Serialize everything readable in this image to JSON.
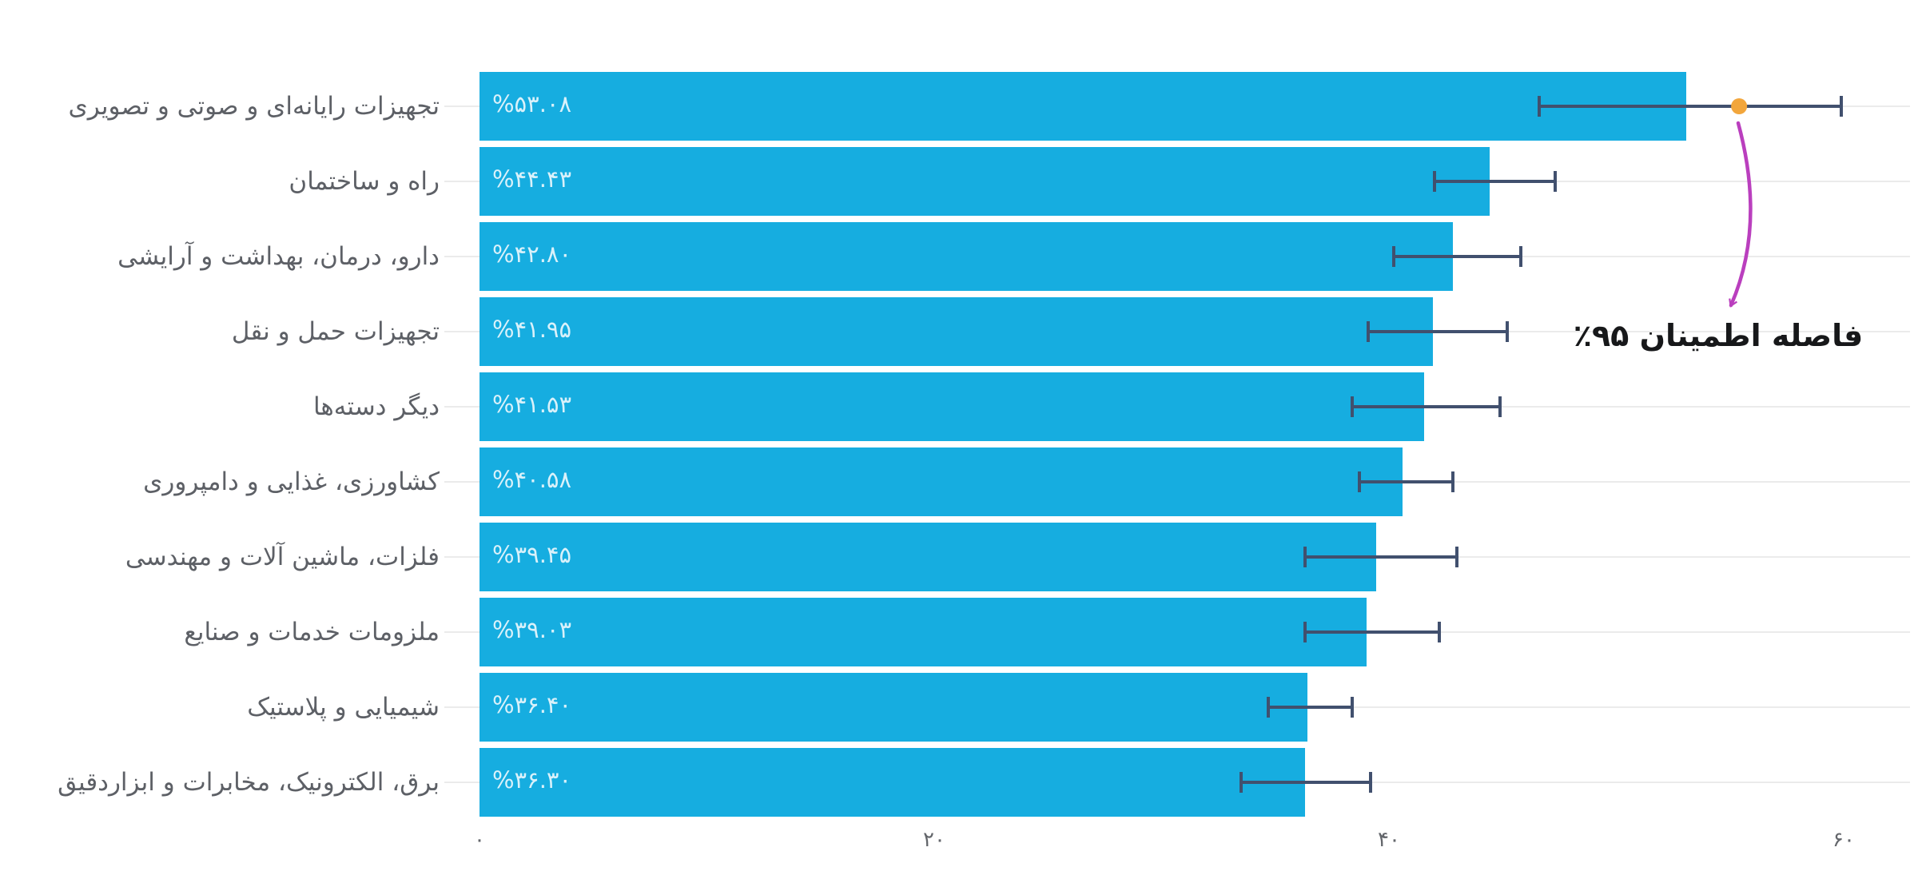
{
  "chart_data": {
    "type": "bar",
    "orientation": "horizontal",
    "title": "",
    "xlabel": "",
    "ylabel": "",
    "xlim": [
      0,
      60
    ],
    "grid": "horizontal-row-lines",
    "legend": null,
    "categories": [
      "تجهیزات رایانه‌ای و صوتی و تصویری",
      "راه و ساختمان",
      "دارو، درمان، بهداشت و آرایشی",
      "تجهیزات حمل و نقل",
      "دیگر دسته‌ها",
      "کشاورزی، غذایی و دامپروری",
      "فلزات، ماشین آلات و مهندسی",
      "ملزومات خدمات و صنایع",
      "شیمیایی و پلاستیک",
      "برق، الکترونیک، مخابرات و ابزاردقیق"
    ],
    "values": [
      53.08,
      44.43,
      42.8,
      41.95,
      41.53,
      40.58,
      39.45,
      39.03,
      36.4,
      36.3
    ],
    "value_labels": [
      "%۵۳.۰۸",
      "%۴۴.۴۳",
      "%۴۲.۸۰",
      "%۴۱.۹۵",
      "%۴۱.۵۳",
      "%۴۰.۵۸",
      "%۳۹.۴۵",
      "%۳۹.۰۳",
      "%۳۶.۴۰",
      "%۳۶.۳۰"
    ],
    "error_low": [
      46.6,
      42.0,
      40.2,
      39.1,
      38.4,
      38.7,
      36.3,
      36.3,
      34.7,
      33.5
    ],
    "error_high": [
      59.9,
      47.3,
      45.8,
      45.2,
      44.9,
      42.8,
      43.0,
      42.2,
      38.4,
      39.2
    ],
    "xticks": [
      {
        "label": "۰",
        "value": 0
      },
      {
        "label": "۲۰",
        "value": 20
      },
      {
        "label": "۴۰",
        "value": 40
      },
      {
        "label": "۶۰",
        "value": 60
      }
    ],
    "annotation": {
      "text": "فاصله اطمینان ۹۵٪",
      "marker_row": 0,
      "marker_value": 55.4
    },
    "colors": {
      "bar": "#16ade0",
      "bar_value_text": "#d9f1fa",
      "error_bar": "#41506e",
      "gridline": "#ebebeb",
      "category_text": "#5d6066",
      "tick_text": "#63666b",
      "annotation_text": "#17181a",
      "annotation_arrow": "#ba3fbe",
      "annotation_dot": "#f2a63c",
      "background": "#ffffff"
    }
  }
}
